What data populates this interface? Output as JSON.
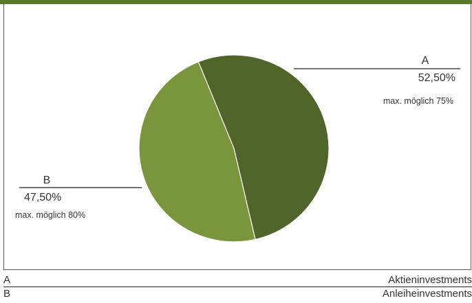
{
  "colors": {
    "header_bar": "#5a7a2b",
    "slice_a": "#4f6529",
    "slice_b": "#7a963d"
  },
  "chart_data": {
    "type": "pie",
    "slices": [
      {
        "key": "A",
        "label": "Aktieninvestments",
        "value": 52.5,
        "value_text": "52,50%",
        "note": "max. möglich 75%",
        "color": "#4f6529"
      },
      {
        "key": "B",
        "label": "Anleiheinvestments",
        "value": 47.5,
        "value_text": "47,50%",
        "note": "max. möglich 80%",
        "color": "#7a963d"
      }
    ]
  },
  "legend": [
    {
      "key": "A",
      "name": "Aktieninvestments"
    },
    {
      "key": "B",
      "name": "Anleiheinvestments"
    }
  ]
}
